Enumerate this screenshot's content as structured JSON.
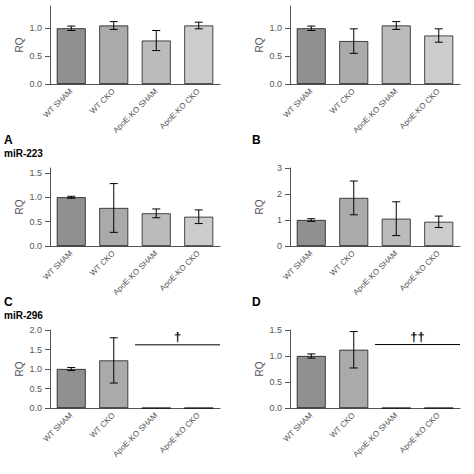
{
  "chart_data": [
    {
      "type": "bar",
      "categories": [
        "WT SHAM",
        "WT CKO",
        "ApoE-KO SHAM",
        "ApoE-KO CKO"
      ],
      "values": [
        1.0,
        1.05,
        0.78,
        1.05
      ],
      "errors": [
        0.04,
        0.07,
        0.18,
        0.06
      ],
      "colors": [
        "#909090",
        "#aaaaaa",
        "#bbbbbb",
        "#cccccc"
      ],
      "ylim": [
        0,
        1.4
      ],
      "yticks": [
        {
          "value": 0,
          "label": "0.0"
        },
        0.5,
        {
          "value": 1,
          "label": "1.0"
        }
      ],
      "ylabel": "RQ",
      "grid": false
    },
    {
      "type": "bar",
      "categories": [
        "WT SHAM",
        "WT CKO",
        "ApoE-KO SHAM",
        "ApoE-KO CKO"
      ],
      "values": [
        1.0,
        0.77,
        1.05,
        0.87
      ],
      "errors": [
        0.04,
        0.22,
        0.07,
        0.12
      ],
      "colors": [
        "#909090",
        "#aaaaaa",
        "#bbbbbb",
        "#cccccc"
      ],
      "ylim": [
        0,
        1.4
      ],
      "yticks": [
        {
          "value": 0,
          "label": "0.0"
        },
        0.5,
        {
          "value": 1,
          "label": "1.0"
        }
      ],
      "ylabel": "RQ",
      "grid": false
    },
    {
      "type": "bar",
      "title": "A",
      "subtitle": "miR-223",
      "categories": [
        "WT SHAM",
        "WT CKO",
        "ApoE-KO SHAM",
        "ApoE-KO CKO"
      ],
      "values": [
        1.0,
        0.78,
        0.67,
        0.6
      ],
      "errors": [
        0.02,
        0.5,
        0.09,
        0.14
      ],
      "colors": [
        "#909090",
        "#aaaaaa",
        "#bbbbbb",
        "#cccccc"
      ],
      "ylim": [
        0,
        1.6
      ],
      "yticks": [
        {
          "value": 0,
          "label": "0.0"
        },
        0.5,
        {
          "value": 1,
          "label": "1.0"
        },
        1.5
      ],
      "ylabel": "RQ",
      "grid": false
    },
    {
      "type": "bar",
      "title": "B",
      "categories": [
        "WT SHAM",
        "WT CKO",
        "ApoE-KO SHAM",
        "ApoE-KO CKO"
      ],
      "values": [
        1.0,
        1.85,
        1.05,
        0.93
      ],
      "errors": [
        0.05,
        0.65,
        0.65,
        0.22
      ],
      "colors": [
        "#909090",
        "#aaaaaa",
        "#bbbbbb",
        "#cccccc"
      ],
      "ylim": [
        0,
        3.0
      ],
      "yticks": [
        0,
        1,
        2,
        3
      ],
      "ylabel": "RQ",
      "grid": false
    },
    {
      "type": "bar",
      "title": "C",
      "subtitle": "miR-296",
      "categories": [
        "WT SHAM",
        "WT CKO",
        "ApoE-KO SHAM",
        "ApoE-KO CKO"
      ],
      "values": [
        1.0,
        1.22,
        0.0,
        0.0
      ],
      "errors": [
        0.04,
        0.58,
        0.0,
        0.0
      ],
      "colors": [
        "#909090",
        "#aaaaaa",
        "#bbbbbb",
        "#cccccc"
      ],
      "ylim": [
        0,
        2.0
      ],
      "yticks": [
        {
          "value": 0,
          "label": "0.0"
        },
        0.5,
        {
          "value": 1,
          "label": "1.0"
        },
        1.5,
        {
          "value": 2,
          "label": "2.0"
        }
      ],
      "ylabel": "RQ",
      "grid": false,
      "annotations": [
        {
          "text": "†",
          "x1": 1.5,
          "x2": 3.5,
          "y": 1.62
        }
      ]
    },
    {
      "type": "bar",
      "title": "D",
      "categories": [
        "WT SHAM",
        "WT CKO",
        "ApoE-KO SHAM",
        "ApoE-KO CKO"
      ],
      "values": [
        1.0,
        1.12,
        0.0,
        0.0
      ],
      "errors": [
        0.04,
        0.35,
        0.0,
        0.0
      ],
      "colors": [
        "#909090",
        "#aaaaaa",
        "#bbbbbb",
        "#cccccc"
      ],
      "ylim": [
        0,
        1.5
      ],
      "yticks": [
        {
          "value": 0,
          "label": "0.0"
        },
        0.5,
        {
          "value": 1,
          "label": "1.0"
        },
        1.5
      ],
      "ylabel": "RQ",
      "grid": false,
      "annotations": [
        {
          "text": "††",
          "x1": 1.5,
          "x2": 3.5,
          "y": 1.22
        }
      ]
    }
  ]
}
